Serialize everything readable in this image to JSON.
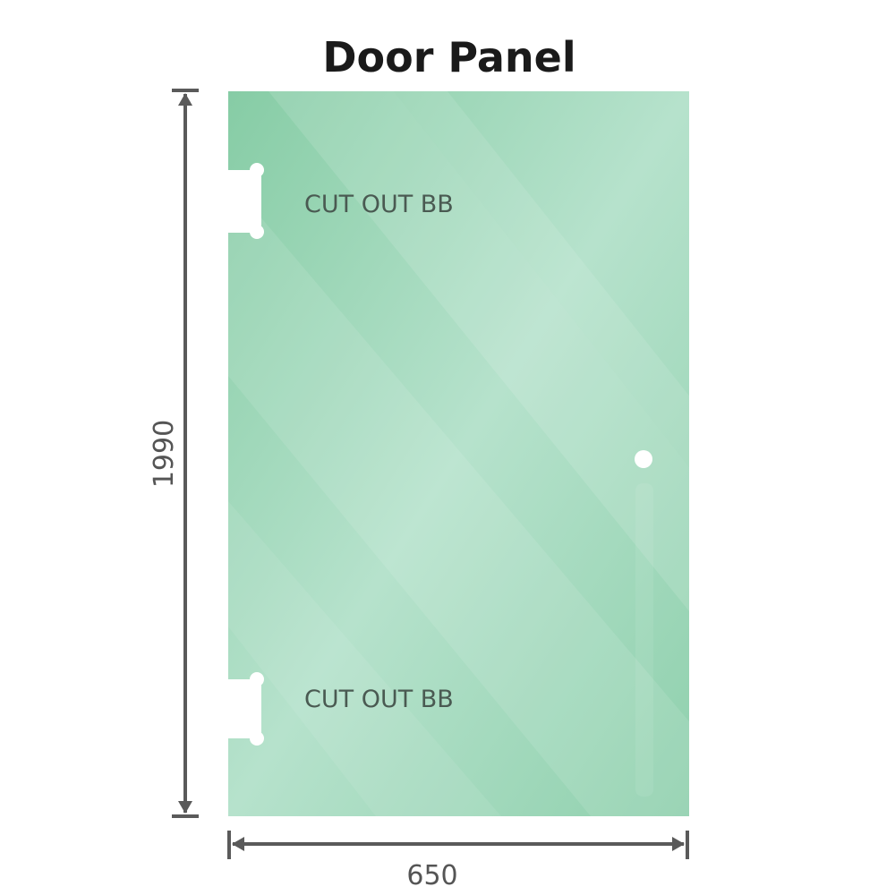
{
  "title": "Door Panel",
  "labels": {
    "cutout_top": "CUT OUT BB",
    "cutout_bottom": "CUT OUT BB"
  },
  "dimensions": {
    "height": "1990",
    "width": "650"
  },
  "colors": {
    "glass": "#8fd0ad",
    "glass_light": "#bde6d1",
    "dimension_line": "#5a5a5a",
    "text": "#4a5a52"
  }
}
